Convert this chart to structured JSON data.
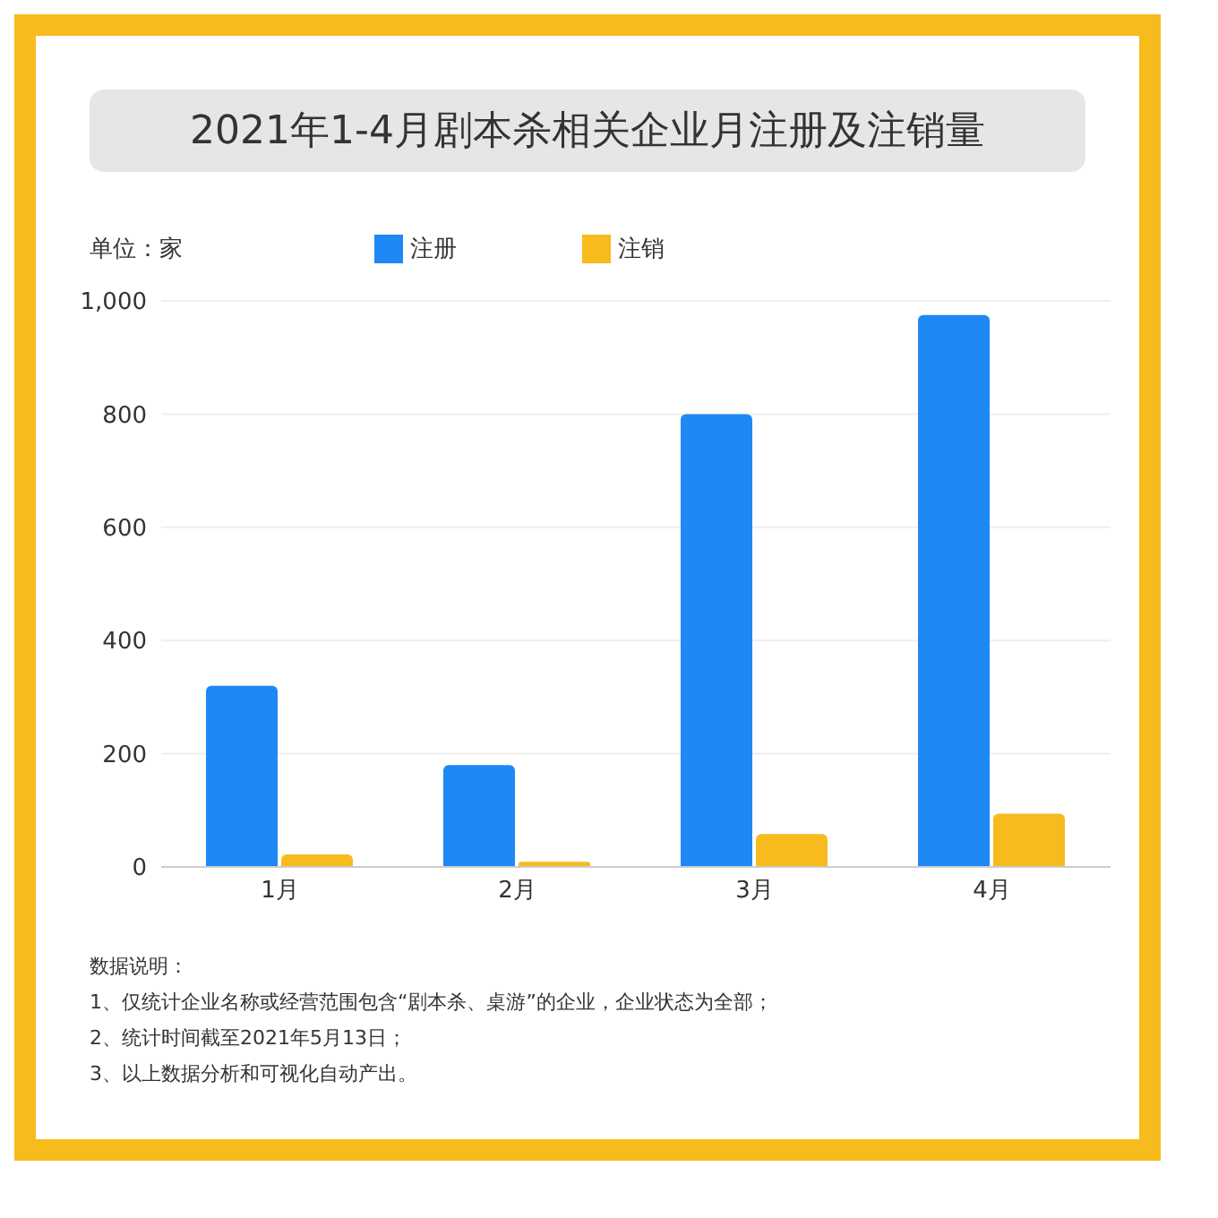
{
  "chart_data": {
    "type": "bar",
    "title": "2021年1-4月剧本杀相关企业月注册及注销量",
    "ylabel": "单位：家",
    "categories": [
      "1月",
      "2月",
      "3月",
      "4月"
    ],
    "series": [
      {
        "name": "注册",
        "color": "#1e88f5",
        "values": [
          320,
          180,
          800,
          975
        ]
      },
      {
        "name": "注销",
        "color": "#f7bb1e",
        "values": [
          22,
          9,
          58,
          94
        ]
      }
    ],
    "ylim": [
      0,
      1000
    ],
    "yticks": [
      0,
      200,
      400,
      600,
      800,
      {
        "value": 1000,
        "label": "1,000"
      }
    ],
    "grid": "y",
    "legend": "top",
    "annotations": [
      "数据说明：",
      "1、仅统计企业名称或经营范围包含“剧本杀、桌游”的企业，企业状态为全部；",
      "2、统计时间截至2021年5月13日；",
      "3、以上数据分析和可视化自动产出。"
    ]
  }
}
